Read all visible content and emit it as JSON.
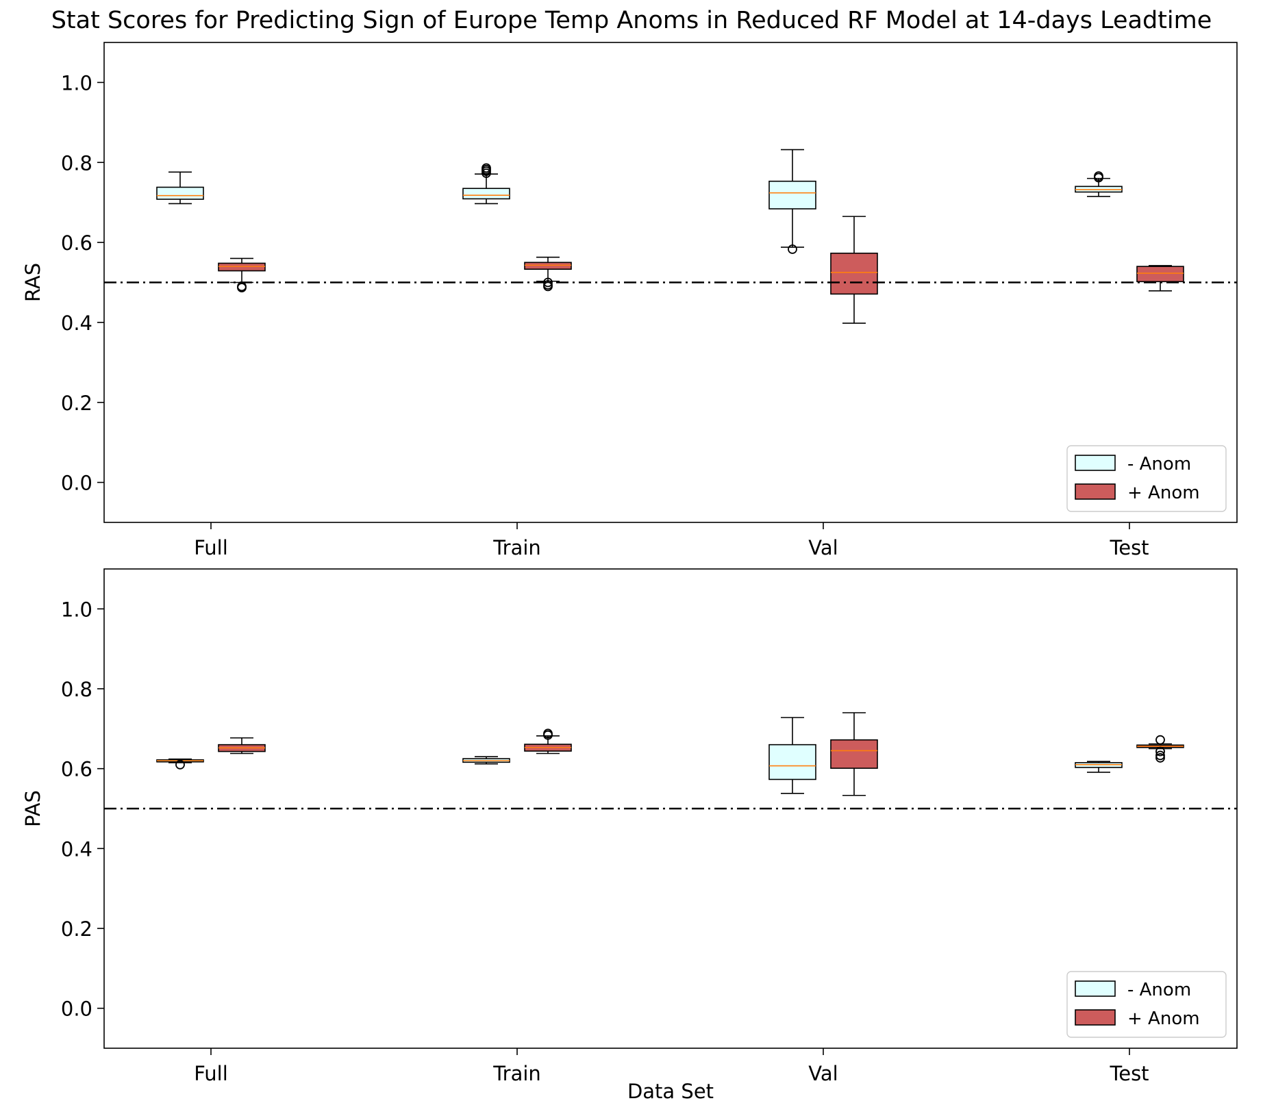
{
  "title": "Stat Scores for Predicting Sign of Europe Temp Anoms in Reduced RF Model at 14-days Leadtime",
  "colors": {
    "neg_anom": "#e0ffff",
    "pos_anom": "#cd5c5c",
    "median": "#ff7f0e",
    "reference_line": "#000000"
  },
  "chart_data": [
    {
      "type": "boxplot",
      "ylabel": "RAS",
      "xlabel": "",
      "categories": [
        "Full",
        "Train",
        "Val",
        "Test"
      ],
      "ylim": [
        -0.1,
        1.1
      ],
      "yticks": [
        "0.0",
        "0.2",
        "0.4",
        "0.6",
        "0.8",
        "1.0"
      ],
      "reference_line": 0.5,
      "legend": {
        "position": "lower-right",
        "entries": [
          "- Anom",
          "+ Anom"
        ]
      },
      "series": [
        {
          "name": "- Anom",
          "boxes": [
            {
              "whislo": 0.697,
              "q1": 0.708,
              "med": 0.717,
              "q3": 0.738,
              "whishi": 0.776,
              "fliers": []
            },
            {
              "whislo": 0.697,
              "q1": 0.709,
              "med": 0.718,
              "q3": 0.735,
              "whishi": 0.771,
              "fliers": [
                0.773,
                0.778,
                0.782,
                0.786
              ]
            },
            {
              "whislo": 0.588,
              "q1": 0.684,
              "med": 0.724,
              "q3": 0.753,
              "whishi": 0.832,
              "fliers": [
                0.583
              ]
            },
            {
              "whislo": 0.715,
              "q1": 0.726,
              "med": 0.732,
              "q3": 0.74,
              "whishi": 0.76,
              "fliers": [
                0.762,
                0.766
              ]
            }
          ]
        },
        {
          "name": "+ Anom",
          "boxes": [
            {
              "whislo": 0.5,
              "q1": 0.529,
              "med": 0.54,
              "q3": 0.548,
              "whishi": 0.56,
              "fliers": [
                0.487,
                0.49
              ]
            },
            {
              "whislo": 0.503,
              "q1": 0.533,
              "med": 0.543,
              "q3": 0.55,
              "whishi": 0.563,
              "fliers": [
                0.49,
                0.494,
                0.5
              ]
            },
            {
              "whislo": 0.398,
              "q1": 0.471,
              "med": 0.525,
              "q3": 0.573,
              "whishi": 0.665,
              "fliers": []
            },
            {
              "whislo": 0.479,
              "q1": 0.502,
              "med": 0.523,
              "q3": 0.54,
              "whishi": 0.542,
              "fliers": []
            }
          ]
        }
      ]
    },
    {
      "type": "boxplot",
      "ylabel": "PAS",
      "xlabel": "Data Set",
      "categories": [
        "Full",
        "Train",
        "Val",
        "Test"
      ],
      "ylim": [
        -0.1,
        1.1
      ],
      "yticks": [
        "0.0",
        "0.2",
        "0.4",
        "0.6",
        "0.8",
        "1.0"
      ],
      "reference_line": 0.5,
      "legend": {
        "position": "lower-right",
        "entries": [
          "- Anom",
          "+ Anom"
        ]
      },
      "series": [
        {
          "name": "- Anom",
          "boxes": [
            {
              "whislo": 0.615,
              "q1": 0.617,
              "med": 0.62,
              "q3": 0.622,
              "whishi": 0.624,
              "fliers": [
                0.61
              ]
            },
            {
              "whislo": 0.612,
              "q1": 0.616,
              "med": 0.62,
              "q3": 0.625,
              "whishi": 0.63,
              "fliers": []
            },
            {
              "whislo": 0.538,
              "q1": 0.573,
              "med": 0.607,
              "q3": 0.66,
              "whishi": 0.728,
              "fliers": []
            },
            {
              "whislo": 0.591,
              "q1": 0.603,
              "med": 0.61,
              "q3": 0.615,
              "whishi": 0.618,
              "fliers": []
            }
          ]
        },
        {
          "name": "+ Anom",
          "boxes": [
            {
              "whislo": 0.638,
              "q1": 0.643,
              "med": 0.652,
              "q3": 0.66,
              "whishi": 0.677,
              "fliers": []
            },
            {
              "whislo": 0.638,
              "q1": 0.644,
              "med": 0.653,
              "q3": 0.661,
              "whishi": 0.682,
              "fliers": [
                0.684,
                0.688
              ]
            },
            {
              "whislo": 0.533,
              "q1": 0.601,
              "med": 0.645,
              "q3": 0.672,
              "whishi": 0.74,
              "fliers": []
            },
            {
              "whislo": 0.65,
              "q1": 0.653,
              "med": 0.656,
              "q3": 0.659,
              "whishi": 0.662,
              "fliers": [
                0.627,
                0.633,
                0.643,
                0.672
              ]
            }
          ]
        }
      ]
    }
  ]
}
